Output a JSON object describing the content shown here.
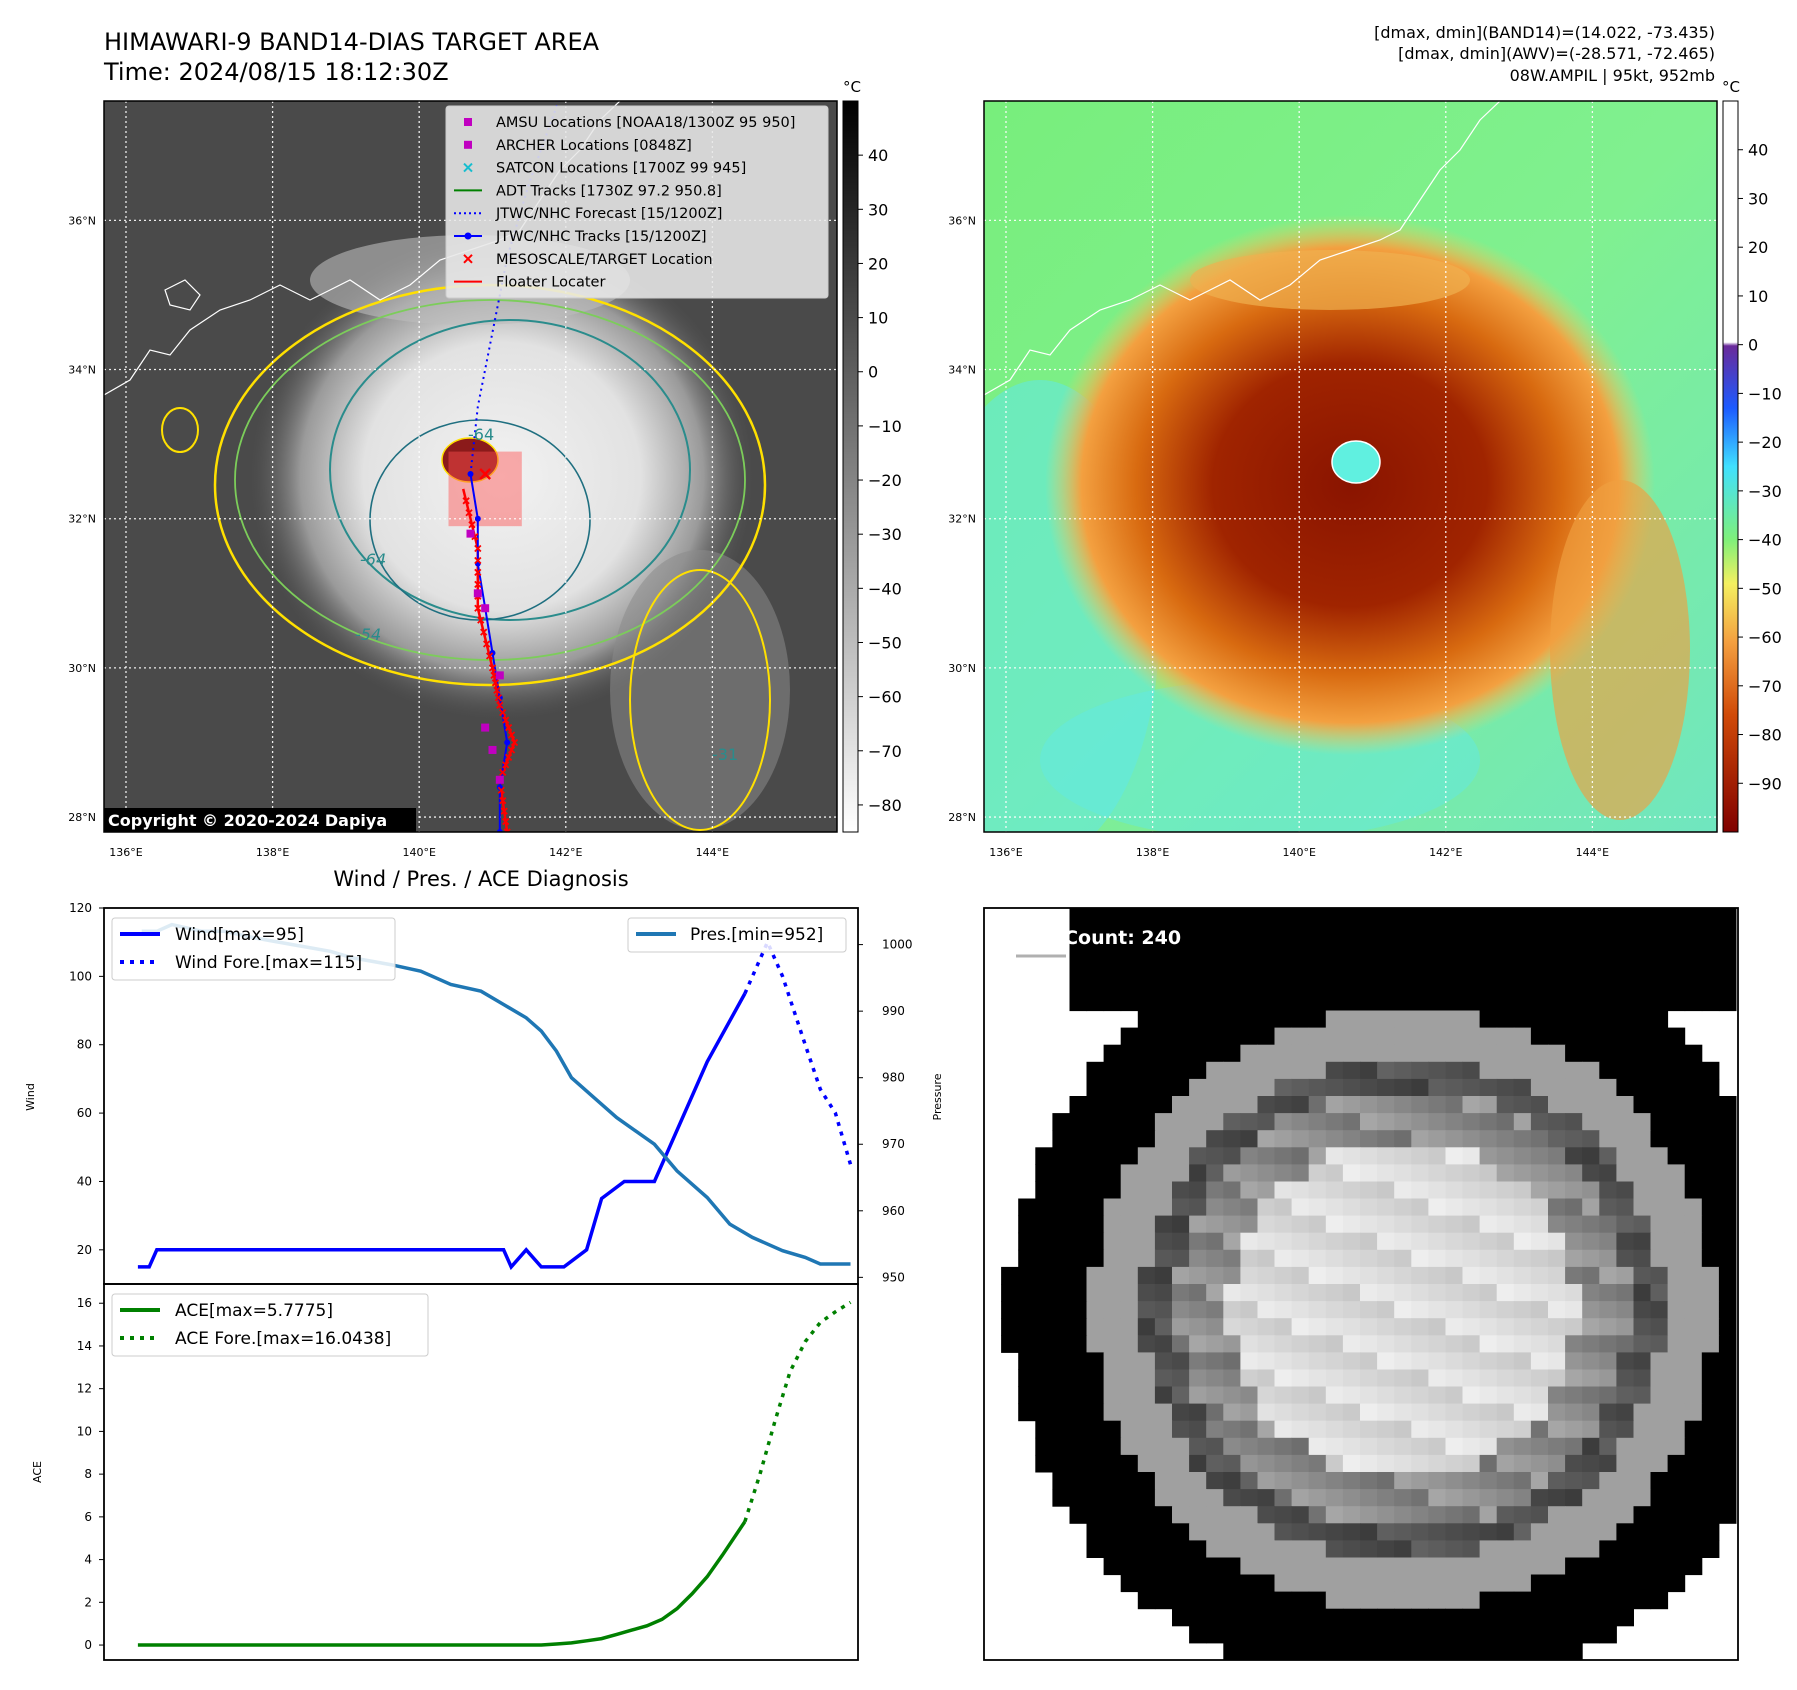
{
  "header": {
    "title_line1": "HIMAWARI-9 BAND14-DIAS TARGET AREA",
    "title_line2": "Time: 2024/08/15 18:12:30Z",
    "info_line1": "[dmax, dmin](BAND14)=(14.022, -73.435)",
    "info_line2": "[dmax, dmin](AWV)=(-28.571, -72.465)",
    "info_line3": "08W.AMPIL | 95kt, 952mb"
  },
  "colors": {
    "wind": "#0000ff",
    "pressure": "#1f77b4",
    "ace": "#008000",
    "track_red": "#ff0000",
    "amsu": "#c000c0",
    "satcon": "#17becf",
    "contour_yellow": "#ffe000",
    "contour_teal": "#2a8c8c"
  },
  "map_axes": {
    "lon_ticks": [
      "136°E",
      "138°E",
      "140°E",
      "142°E",
      "144°E"
    ],
    "lat_ticks": [
      "28°N",
      "30°N",
      "32°N",
      "34°N",
      "36°N"
    ],
    "lon_range": [
      135.7,
      145.7
    ],
    "lat_range": [
      27.8,
      37.6
    ]
  },
  "ir_panel": {
    "colorbar_unit": "°C",
    "colorbar_ticks": [
      40,
      30,
      20,
      10,
      0,
      -10,
      -20,
      -30,
      -40,
      -50,
      -60,
      -70,
      -80
    ],
    "colorbar_range": [
      -85,
      50
    ],
    "contour_labels": [
      "-64",
      "-64",
      "-54",
      "-31"
    ],
    "copyright": "Copyright © 2020-2024 Dapiya",
    "legend": [
      {
        "label": "AMSU Locations [NOAA18/1300Z 95 950]",
        "marker": "square",
        "color": "#c000c0"
      },
      {
        "label": "ARCHER Locations [0848Z]",
        "marker": "square",
        "color": "#c000c0"
      },
      {
        "label": "SATCON Locations [1700Z 99 945]",
        "marker": "x",
        "color": "#17becf"
      },
      {
        "label": "ADT Tracks [1730Z 97.2 950.8]",
        "marker": "line",
        "color": "#008000"
      },
      {
        "label": "JTWC/NHC Forecast [15/1200Z]",
        "marker": "dotted",
        "color": "#0000ff"
      },
      {
        "label": "JTWC/NHC Tracks [15/1200Z]",
        "marker": "line-dot",
        "color": "#0000ff"
      },
      {
        "label": "MESOSCALE/TARGET Location",
        "marker": "x",
        "color": "#ff0000"
      },
      {
        "label": "Floater Locater",
        "marker": "line",
        "color": "#ff0000"
      }
    ],
    "jtwc_track": [
      [
        141.1,
        27.8
      ],
      [
        141.1,
        28.4
      ],
      [
        141.2,
        29.0
      ],
      [
        141.1,
        29.6
      ],
      [
        141.0,
        30.2
      ],
      [
        140.9,
        30.8
      ],
      [
        140.8,
        31.4
      ],
      [
        140.8,
        32.0
      ],
      [
        140.7,
        32.6
      ]
    ],
    "jtwc_forecast": [
      [
        140.7,
        32.6
      ],
      [
        140.8,
        33.5
      ],
      [
        141.0,
        34.5
      ],
      [
        141.2,
        35.5
      ],
      [
        141.5,
        36.5
      ],
      [
        141.9,
        37.6
      ]
    ],
    "floater_track": [
      [
        141.2,
        27.8
      ],
      [
        141.1,
        28.5
      ],
      [
        141.3,
        29.0
      ],
      [
        141.1,
        29.5
      ],
      [
        141.0,
        30.0
      ],
      [
        140.8,
        30.8
      ],
      [
        140.8,
        31.6
      ],
      [
        140.6,
        32.4
      ]
    ],
    "target_box": {
      "lon": [
        140.4,
        141.4
      ],
      "lat": [
        31.9,
        32.9
      ]
    },
    "amsu_points": [
      [
        141.0,
        28.9
      ],
      [
        140.9,
        29.2
      ],
      [
        141.1,
        29.9
      ],
      [
        140.9,
        30.8
      ],
      [
        140.8,
        31.0
      ],
      [
        140.7,
        31.8
      ],
      [
        141.1,
        28.5
      ]
    ],
    "center": [
      140.9,
      32.6
    ]
  },
  "awv_panel": {
    "colorbar_unit": "°C",
    "colorbar_ticks": [
      40,
      30,
      20,
      10,
      0,
      -10,
      -20,
      -30,
      -40,
      -50,
      -60,
      -70,
      -80,
      -90
    ],
    "colorbar_range": [
      -100,
      50
    ]
  },
  "diagnosis": {
    "title": "Wind / Pres. / ACE Diagnosis",
    "wind_ylabel": "Wind",
    "pres_ylabel": "Pressure",
    "ace_ylabel": "ACE"
  },
  "chart_data": [
    {
      "type": "line",
      "title": "Wind / Pres. / ACE Diagnosis",
      "ylabel": "Wind",
      "ylim": [
        10,
        120
      ],
      "y2label": "Pressure",
      "y2lim": [
        949,
        1005.5
      ],
      "xlim": [
        0,
        100
      ],
      "legend": "upper-left / upper-right",
      "series": [
        {
          "name": "Wind[max=95]",
          "axis": "left",
          "style": "solid",
          "x": [
            4.5,
            6,
            7,
            53,
            54,
            56,
            58,
            61,
            64,
            66,
            69,
            73,
            75,
            80,
            85
          ],
          "y": [
            15,
            15,
            20,
            20,
            15,
            20,
            15,
            15,
            20,
            35,
            40,
            40,
            50,
            75,
            95
          ]
        },
        {
          "name": "Wind Fore.[max=115]",
          "axis": "left",
          "style": "dotted",
          "x": [
            85,
            88,
            90,
            93,
            95,
            97,
            99
          ],
          "y": [
            95,
            110,
            100,
            80,
            67,
            60,
            45
          ]
        },
        {
          "name": "Pres.[min=952]",
          "axis": "right",
          "style": "solid",
          "x": [
            5,
            7,
            9,
            13,
            16,
            20,
            25,
            30,
            33,
            38,
            42,
            46,
            50,
            53,
            56,
            58,
            60,
            62,
            65,
            68,
            73,
            76,
            80,
            83,
            86,
            90,
            93,
            95,
            99
          ],
          "y": [
            1002,
            1002,
            1003,
            1002,
            1002,
            1001,
            1000,
            999,
            998,
            997,
            996,
            994,
            993,
            991,
            989,
            987,
            984,
            980,
            977,
            974,
            970,
            966,
            962,
            958,
            956,
            954,
            953,
            952,
            952
          ]
        }
      ]
    },
    {
      "type": "line",
      "ylabel": "ACE",
      "ylim": [
        -0.7,
        16.9
      ],
      "xlim": [
        0,
        100
      ],
      "legend": "upper-left",
      "series": [
        {
          "name": "ACE[max=5.7775]",
          "style": "solid",
          "x": [
            4.5,
            10,
            20,
            30,
            40,
            50,
            55,
            58,
            60,
            62,
            64,
            66,
            68,
            70,
            72,
            74,
            76,
            78,
            80,
            82,
            85
          ],
          "y": [
            0,
            0,
            0,
            0,
            0,
            0,
            0,
            0,
            0.05,
            0.1,
            0.2,
            0.3,
            0.5,
            0.7,
            0.9,
            1.2,
            1.7,
            2.4,
            3.2,
            4.2,
            5.7775
          ]
        },
        {
          "name": "ACE Fore.[max=16.0438]",
          "style": "dotted",
          "x": [
            85,
            87,
            89,
            91,
            93,
            95,
            97,
            99
          ],
          "y": [
            5.7775,
            8,
            10.5,
            12.8,
            14.2,
            15.1,
            15.6,
            16.0438
          ]
        }
      ]
    }
  ],
  "wmg_panel": {
    "label": "WMG Count: 240"
  }
}
